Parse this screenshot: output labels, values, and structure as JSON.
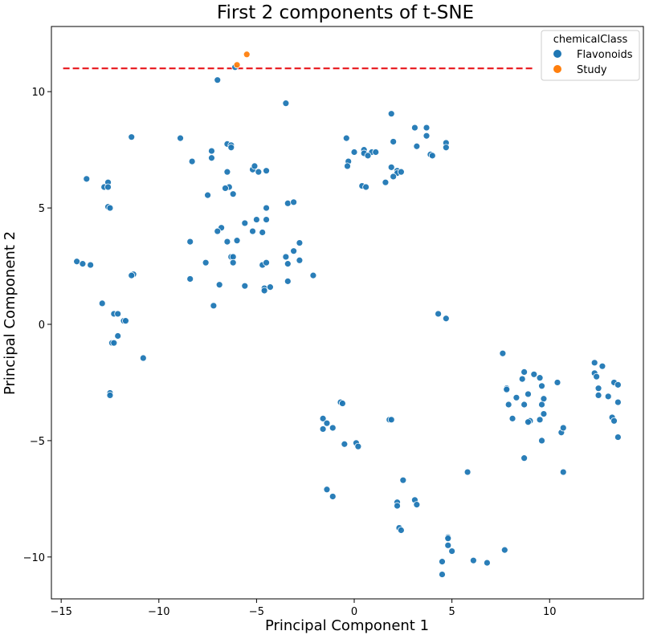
{
  "chart_data": {
    "type": "scatter",
    "title": "First 2 components of t-SNE",
    "xlabel": "Principal Component 1",
    "ylabel": "Principal Component 2",
    "xlim": [
      -15.5,
      14.8
    ],
    "ylim": [
      -11.8,
      12.8
    ],
    "xticks": [
      -15,
      -10,
      -5,
      0,
      5,
      10
    ],
    "yticks": [
      -10,
      -5,
      0,
      5,
      10
    ],
    "grid": false,
    "legend": {
      "title": "chemicalClass",
      "position": "top-right"
    },
    "reference_line": {
      "y": 11,
      "style": "dashed",
      "color": "#e8161b"
    },
    "series": [
      {
        "name": "Flavonoids",
        "color": "#1f77b4",
        "points": [
          [
            -6.1,
            11.05
          ],
          [
            -7.0,
            10.5
          ],
          [
            -3.5,
            9.5
          ],
          [
            -11.4,
            8.05
          ],
          [
            -8.9,
            8.0
          ],
          [
            -7.3,
            7.45
          ],
          [
            -6.5,
            7.75
          ],
          [
            -6.3,
            7.7
          ],
          [
            -6.3,
            7.6
          ],
          [
            -7.3,
            7.15
          ],
          [
            -8.3,
            7.0
          ],
          [
            -6.5,
            6.55
          ],
          [
            -5.2,
            6.65
          ],
          [
            -5.1,
            6.8
          ],
          [
            -4.9,
            6.55
          ],
          [
            -4.5,
            6.6
          ],
          [
            -6.4,
            5.9
          ],
          [
            -6.6,
            5.85
          ],
          [
            -6.2,
            5.6
          ],
          [
            -7.5,
            5.55
          ],
          [
            -13.7,
            6.25
          ],
          [
            -12.6,
            6.1
          ],
          [
            -12.8,
            5.9
          ],
          [
            -12.6,
            5.9
          ],
          [
            -12.6,
            5.05
          ],
          [
            -12.5,
            5.0
          ],
          [
            -3.4,
            5.2
          ],
          [
            -3.1,
            5.25
          ],
          [
            -4.5,
            5.0
          ],
          [
            -5.6,
            4.35
          ],
          [
            -5.0,
            4.5
          ],
          [
            -4.5,
            4.5
          ],
          [
            -6.8,
            4.15
          ],
          [
            -7.0,
            4.0
          ],
          [
            -5.2,
            4.0
          ],
          [
            -4.7,
            3.95
          ],
          [
            -8.4,
            3.55
          ],
          [
            -6.5,
            3.55
          ],
          [
            -6.0,
            3.6
          ],
          [
            -2.8,
            3.5
          ],
          [
            -3.5,
            2.9
          ],
          [
            -3.1,
            3.15
          ],
          [
            -6.3,
            2.9
          ],
          [
            -6.2,
            2.9
          ],
          [
            -7.6,
            2.65
          ],
          [
            -6.2,
            2.65
          ],
          [
            -4.7,
            2.55
          ],
          [
            -4.5,
            2.65
          ],
          [
            -3.4,
            2.6
          ],
          [
            -2.8,
            2.75
          ],
          [
            -2.1,
            2.1
          ],
          [
            -14.2,
            2.7
          ],
          [
            -13.9,
            2.6
          ],
          [
            -13.5,
            2.55
          ],
          [
            -11.3,
            2.15
          ],
          [
            -11.4,
            2.1
          ],
          [
            -8.4,
            1.95
          ],
          [
            -6.9,
            1.7
          ],
          [
            -5.6,
            1.65
          ],
          [
            -4.6,
            1.55
          ],
          [
            -4.6,
            1.45
          ],
          [
            -4.3,
            1.6
          ],
          [
            -3.4,
            1.85
          ],
          [
            -7.2,
            0.8
          ],
          [
            -12.9,
            0.9
          ],
          [
            -12.3,
            0.45
          ],
          [
            -12.1,
            0.45
          ],
          [
            -11.8,
            0.15
          ],
          [
            -11.7,
            0.15
          ],
          [
            -12.1,
            -0.5
          ],
          [
            -12.4,
            -0.8
          ],
          [
            -12.3,
            -0.8
          ],
          [
            -10.8,
            -1.45
          ],
          [
            -12.5,
            -2.95
          ],
          [
            -12.5,
            -3.05
          ],
          [
            -0.4,
            8.0
          ],
          [
            -0.3,
            7.0
          ],
          [
            -0.35,
            6.8
          ],
          [
            0.0,
            7.4
          ],
          [
            0.5,
            7.5
          ],
          [
            0.5,
            7.35
          ],
          [
            0.9,
            7.4
          ],
          [
            0.7,
            7.25
          ],
          [
            1.1,
            7.4
          ],
          [
            0.4,
            5.95
          ],
          [
            0.6,
            5.9
          ],
          [
            1.9,
            9.05
          ],
          [
            2.0,
            7.85
          ],
          [
            1.9,
            6.75
          ],
          [
            2.2,
            6.6
          ],
          [
            2.2,
            6.5
          ],
          [
            2.4,
            6.55
          ],
          [
            2.0,
            6.35
          ],
          [
            1.6,
            6.1
          ],
          [
            3.1,
            8.45
          ],
          [
            3.7,
            8.45
          ],
          [
            3.2,
            7.65
          ],
          [
            3.7,
            8.1
          ],
          [
            4.7,
            7.8
          ],
          [
            4.7,
            7.6
          ],
          [
            3.9,
            7.3
          ],
          [
            4.0,
            7.25
          ],
          [
            4.3,
            0.45
          ],
          [
            4.7,
            0.25
          ],
          [
            7.6,
            -1.25
          ],
          [
            7.8,
            -2.75
          ],
          [
            7.8,
            -2.8
          ],
          [
            7.9,
            -3.45
          ],
          [
            8.3,
            -3.15
          ],
          [
            8.6,
            -2.35
          ],
          [
            8.7,
            -2.05
          ],
          [
            8.9,
            -3.0
          ],
          [
            8.7,
            -3.45
          ],
          [
            9.2,
            -2.15
          ],
          [
            9.5,
            -2.3
          ],
          [
            9.6,
            -2.65
          ],
          [
            9.7,
            -3.2
          ],
          [
            9.6,
            -3.45
          ],
          [
            9.7,
            -3.85
          ],
          [
            9.5,
            -4.1
          ],
          [
            9.0,
            -4.15
          ],
          [
            8.9,
            -4.2
          ],
          [
            8.1,
            -4.05
          ],
          [
            9.6,
            -5.0
          ],
          [
            8.7,
            -5.75
          ],
          [
            10.4,
            -2.5
          ],
          [
            10.6,
            -4.65
          ],
          [
            10.7,
            -4.45
          ],
          [
            10.7,
            -6.35
          ],
          [
            12.3,
            -1.65
          ],
          [
            12.7,
            -1.8
          ],
          [
            12.3,
            -2.1
          ],
          [
            12.4,
            -2.25
          ],
          [
            12.5,
            -2.75
          ],
          [
            12.5,
            -3.05
          ],
          [
            13.0,
            -3.1
          ],
          [
            13.3,
            -2.5
          ],
          [
            13.5,
            -2.6
          ],
          [
            13.5,
            -3.35
          ],
          [
            13.2,
            -4.0
          ],
          [
            13.3,
            -4.15
          ],
          [
            13.5,
            -4.85
          ],
          [
            -1.6,
            -4.05
          ],
          [
            -1.4,
            -4.25
          ],
          [
            -1.6,
            -4.5
          ],
          [
            -1.1,
            -4.45
          ],
          [
            -0.7,
            -3.35
          ],
          [
            -0.6,
            -3.4
          ],
          [
            -0.5,
            -5.15
          ],
          [
            0.1,
            -5.1
          ],
          [
            0.2,
            -5.25
          ],
          [
            1.8,
            -4.1
          ],
          [
            1.9,
            -4.1
          ],
          [
            -1.4,
            -7.1
          ],
          [
            -1.1,
            -7.4
          ],
          [
            2.2,
            -7.65
          ],
          [
            2.2,
            -7.8
          ],
          [
            2.5,
            -6.7
          ],
          [
            3.1,
            -7.55
          ],
          [
            3.2,
            -7.75
          ],
          [
            2.3,
            -8.75
          ],
          [
            2.4,
            -8.85
          ],
          [
            5.8,
            -6.35
          ],
          [
            4.8,
            -9.15
          ],
          [
            4.8,
            -9.2
          ],
          [
            4.8,
            -9.5
          ],
          [
            5.0,
            -9.75
          ],
          [
            4.5,
            -10.2
          ],
          [
            4.5,
            -10.75
          ],
          [
            6.1,
            -10.15
          ],
          [
            6.8,
            -10.25
          ],
          [
            7.7,
            -9.7
          ]
        ]
      },
      {
        "name": "Study",
        "color": "#ff7f0e",
        "points": [
          [
            -5.5,
            11.6
          ],
          [
            -6.0,
            11.15
          ]
        ]
      }
    ]
  }
}
